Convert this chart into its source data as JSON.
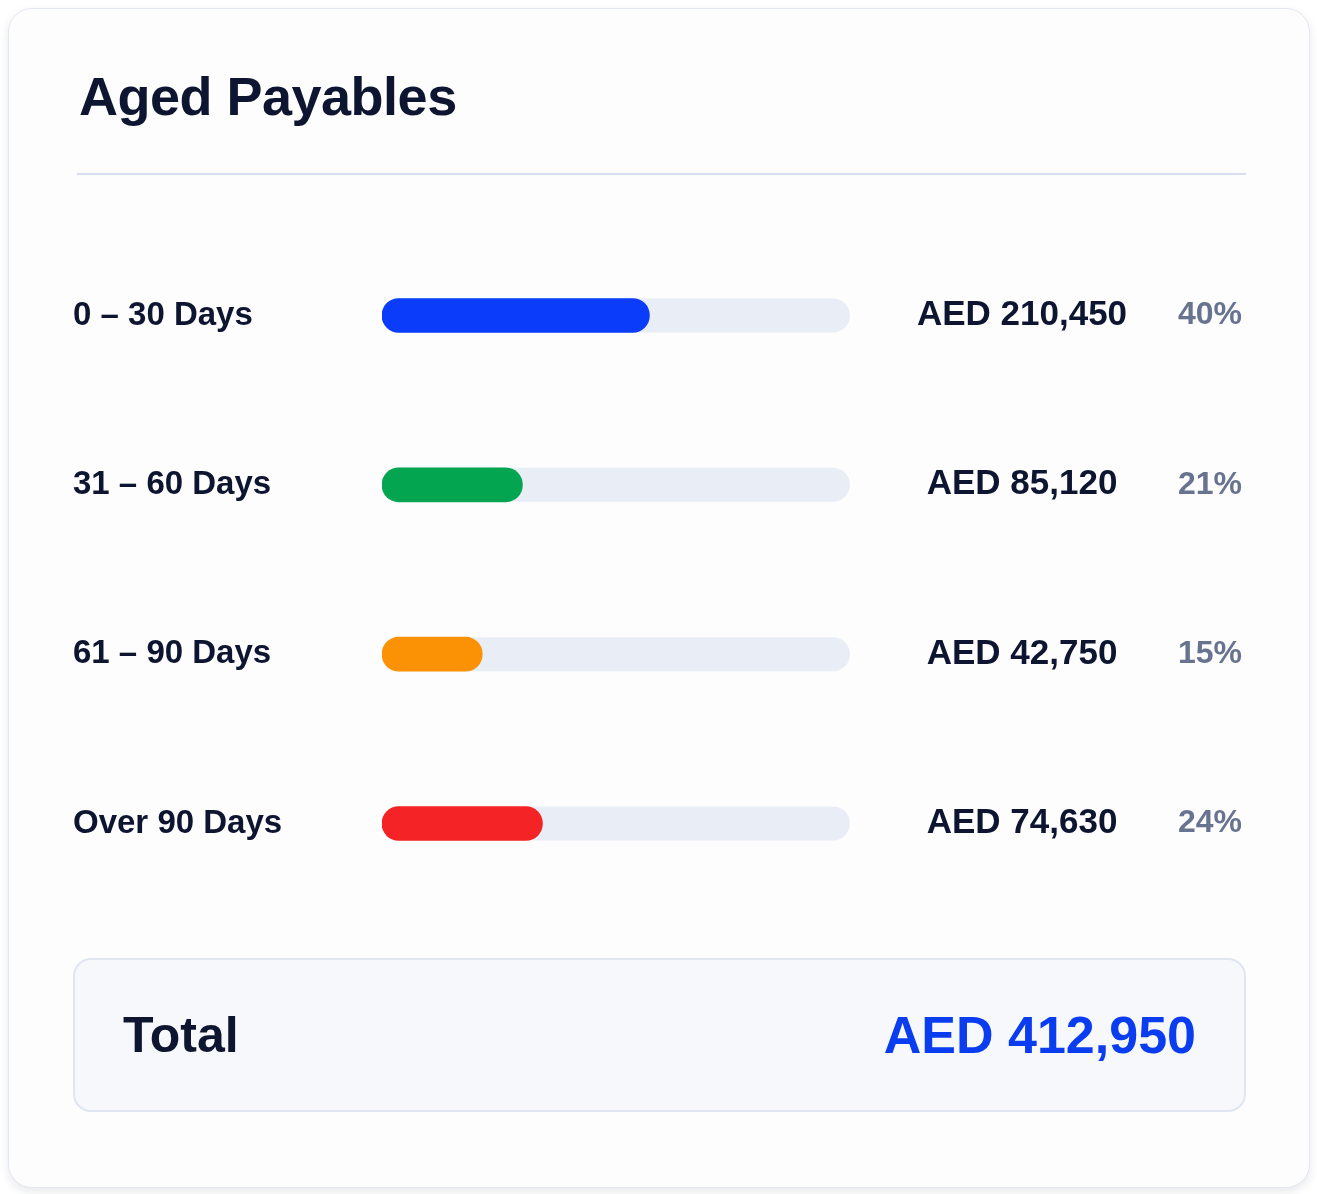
{
  "chart_data": {
    "type": "bar",
    "orientation": "horizontal",
    "title": "Aged Payables",
    "categories": [
      "0 – 30 Days",
      "31 – 60 Days",
      "61 – 90 Days",
      "Over 90 Days"
    ],
    "values": [
      40,
      21,
      15,
      24
    ],
    "colors": [
      "#0a3cfa",
      "#04a550",
      "#fb9206",
      "#f42426"
    ],
    "value_labels": [
      "40%",
      "21%",
      "15%",
      "24%"
    ],
    "xlim": [
      0,
      70
    ],
    "tick_labels": "y",
    "grid": false,
    "legend": false,
    "annotations": [
      "AED 210,450",
      "AED 85,120",
      "AED 42,750",
      "AED 74,630",
      "Total",
      "AED 412,950"
    ]
  }
}
